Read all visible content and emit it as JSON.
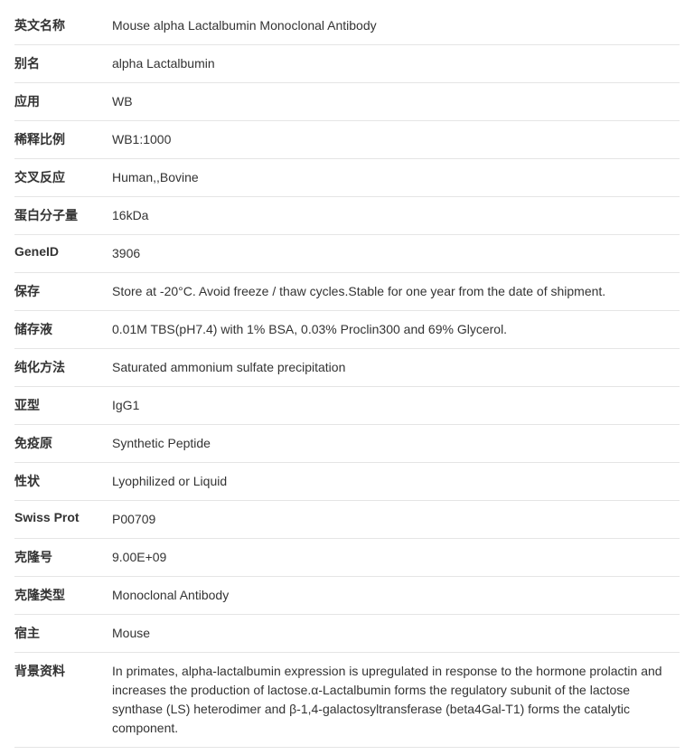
{
  "rows": [
    {
      "label": "英文名称",
      "value": "Mouse alpha Lactalbumin Monoclonal Antibody"
    },
    {
      "label": "别名",
      "value": "alpha Lactalbumin"
    },
    {
      "label": "应用",
      "value": "WB"
    },
    {
      "label": "稀释比例",
      "value": "WB1:1000"
    },
    {
      "label": "交叉反应",
      "value": "Human,,Bovine"
    },
    {
      "label": "蛋白分子量",
      "value": "16kDa"
    },
    {
      "label": "GeneID",
      "value": "3906"
    },
    {
      "label": "保存",
      "value": "Store at -20°C. Avoid freeze / thaw cycles.Stable for one year from the date of shipment."
    },
    {
      "label": "储存液",
      "value": "0.01M TBS(pH7.4) with 1% BSA, 0.03% Proclin300 and 69% Glycerol."
    },
    {
      "label": "纯化方法",
      "value": "Saturated ammonium sulfate precipitation"
    },
    {
      "label": "亚型",
      "value": "IgG1"
    },
    {
      "label": "免疫原",
      "value": "Synthetic Peptide"
    },
    {
      "label": "性状",
      "value": "Lyophilized or Liquid"
    },
    {
      "label": "Swiss Prot",
      "value": "P00709"
    },
    {
      "label": "克隆号",
      "value": "9.00E+09"
    },
    {
      "label": "克隆类型",
      "value": "Monoclonal Antibody"
    },
    {
      "label": "宿主",
      "value": "Mouse"
    },
    {
      "label": "背景资料",
      "value": "In primates, alpha-lactalbumin expression is upregulated in response to the hormone prolactin and increases the production of lactose.α-Lactalbumin forms the regulatory subunit of the lactose synthase (LS) heterodimer and β-1,4-galactosyltransferase (beta4Gal-T1) forms the catalytic component."
    }
  ]
}
